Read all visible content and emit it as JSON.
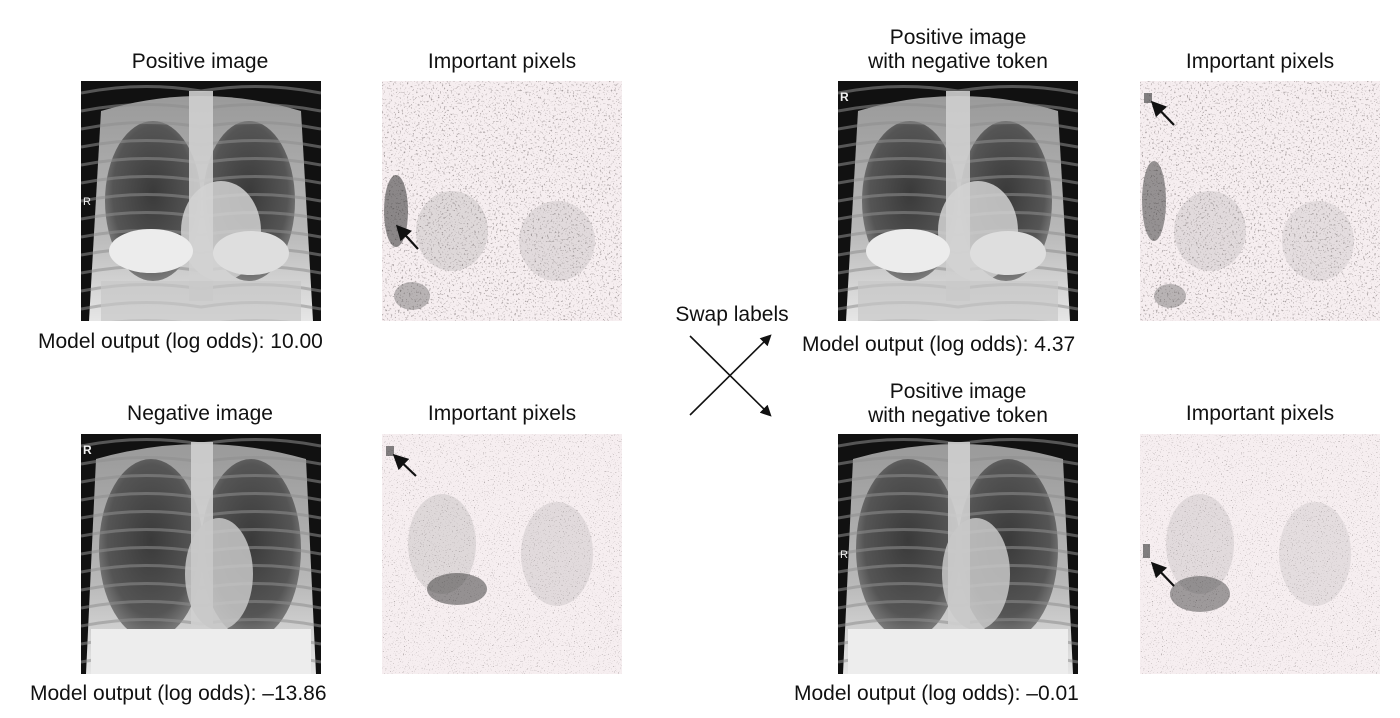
{
  "panels": {
    "top_left": {
      "image_title": "Positive image",
      "pixels_title": "Important pixels",
      "xray_marker": "R",
      "output": "Model output (log odds): 10.00"
    },
    "bottom_left": {
      "image_title": "Negative image",
      "pixels_title": "Important pixels",
      "xray_marker": "R",
      "output": "Model output (log odds): –13.86"
    },
    "top_right": {
      "image_title_line1": "Positive image",
      "image_title_line2": "with negative token",
      "pixels_title": "Important pixels",
      "xray_marker": "R",
      "output": "Model output (log odds): 4.37"
    },
    "bottom_right": {
      "image_title_line1": "Positive image",
      "image_title_line2": "with negative token",
      "pixels_title": "Important pixels",
      "xray_marker": "R",
      "output": "Model output (log odds): –0.01"
    }
  },
  "center": {
    "swap_label": "Swap labels"
  }
}
